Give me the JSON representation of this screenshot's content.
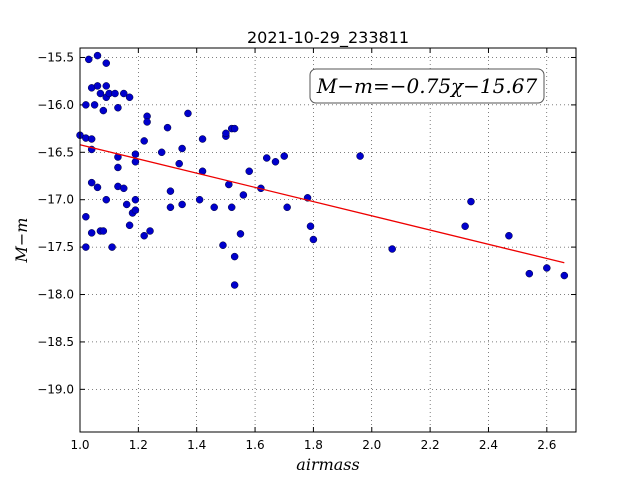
{
  "chart_data": {
    "type": "scatter",
    "title": "2021-10-29_233811",
    "xlabel": "airmass",
    "ylabel": "M−m",
    "xlim": [
      1.0,
      2.7
    ],
    "ylim": [
      -15.4,
      -19.45
    ],
    "y_inverted": true,
    "grid": true,
    "x_ticks": [
      "1.0",
      "1.2",
      "1.4",
      "1.6",
      "1.8",
      "2.0",
      "2.2",
      "2.4",
      "2.6"
    ],
    "y_ticks": [
      "−15.5",
      "−16.0",
      "−16.5",
      "−17.0",
      "−17.5",
      "−18.0",
      "−18.5",
      "−19.0"
    ],
    "annotation": "M−m=−0.75χ−15.67",
    "colors": {
      "points": "#0000cc",
      "fit": "#ee0000"
    },
    "series": [
      {
        "type": "scatter",
        "points": [
          [
            1.0,
            -16.32
          ],
          [
            1.02,
            -16.0
          ],
          [
            1.02,
            -16.35
          ],
          [
            1.02,
            -17.18
          ],
          [
            1.02,
            -17.5
          ],
          [
            1.03,
            -15.52
          ],
          [
            1.04,
            -15.82
          ],
          [
            1.04,
            -16.36
          ],
          [
            1.04,
            -16.47
          ],
          [
            1.04,
            -16.82
          ],
          [
            1.04,
            -17.35
          ],
          [
            1.05,
            -16.0
          ],
          [
            1.06,
            -15.48
          ],
          [
            1.06,
            -15.8
          ],
          [
            1.06,
            -16.87
          ],
          [
            1.07,
            -15.88
          ],
          [
            1.07,
            -17.33
          ],
          [
            1.08,
            -16.06
          ],
          [
            1.08,
            -17.33
          ],
          [
            1.09,
            -15.56
          ],
          [
            1.09,
            -15.8
          ],
          [
            1.09,
            -15.92
          ],
          [
            1.09,
            -17.0
          ],
          [
            1.1,
            -15.88
          ],
          [
            1.11,
            -17.5
          ],
          [
            1.12,
            -15.88
          ],
          [
            1.13,
            -16.03
          ],
          [
            1.13,
            -16.55
          ],
          [
            1.13,
            -16.66
          ],
          [
            1.13,
            -16.86
          ],
          [
            1.15,
            -15.88
          ],
          [
            1.15,
            -16.88
          ],
          [
            1.16,
            -17.05
          ],
          [
            1.17,
            -15.92
          ],
          [
            1.17,
            -17.27
          ],
          [
            1.18,
            -17.14
          ],
          [
            1.19,
            -16.52
          ],
          [
            1.19,
            -16.6
          ],
          [
            1.19,
            -17.0
          ],
          [
            1.19,
            -17.11
          ],
          [
            1.22,
            -16.38
          ],
          [
            1.22,
            -17.38
          ],
          [
            1.23,
            -16.12
          ],
          [
            1.23,
            -16.18
          ],
          [
            1.24,
            -17.33
          ],
          [
            1.28,
            -16.5
          ],
          [
            1.3,
            -16.24
          ],
          [
            1.31,
            -16.91
          ],
          [
            1.31,
            -17.08
          ],
          [
            1.34,
            -16.62
          ],
          [
            1.35,
            -16.46
          ],
          [
            1.35,
            -17.05
          ],
          [
            1.37,
            -16.09
          ],
          [
            1.41,
            -17.0
          ],
          [
            1.42,
            -16.36
          ],
          [
            1.42,
            -16.7
          ],
          [
            1.46,
            -17.08
          ],
          [
            1.49,
            -17.48
          ],
          [
            1.5,
            -16.33
          ],
          [
            1.5,
            -16.3
          ],
          [
            1.51,
            -16.84
          ],
          [
            1.52,
            -16.25
          ],
          [
            1.52,
            -17.08
          ],
          [
            1.53,
            -16.25
          ],
          [
            1.53,
            -17.6
          ],
          [
            1.53,
            -17.9
          ],
          [
            1.55,
            -17.36
          ],
          [
            1.56,
            -16.95
          ],
          [
            1.58,
            -16.7
          ],
          [
            1.62,
            -16.88
          ],
          [
            1.64,
            -16.56
          ],
          [
            1.67,
            -16.6
          ],
          [
            1.7,
            -16.54
          ],
          [
            1.71,
            -17.08
          ],
          [
            1.78,
            -16.98
          ],
          [
            1.79,
            -17.28
          ],
          [
            1.8,
            -17.42
          ],
          [
            1.96,
            -16.54
          ],
          [
            2.07,
            -17.52
          ],
          [
            2.32,
            -17.28
          ],
          [
            2.34,
            -17.02
          ],
          [
            2.47,
            -17.38
          ],
          [
            2.54,
            -17.78
          ],
          [
            2.6,
            -17.72
          ],
          [
            2.66,
            -17.8
          ]
        ]
      },
      {
        "type": "line",
        "points": [
          [
            1.0,
            -16.42
          ],
          [
            2.66,
            -17.665
          ]
        ]
      }
    ]
  }
}
